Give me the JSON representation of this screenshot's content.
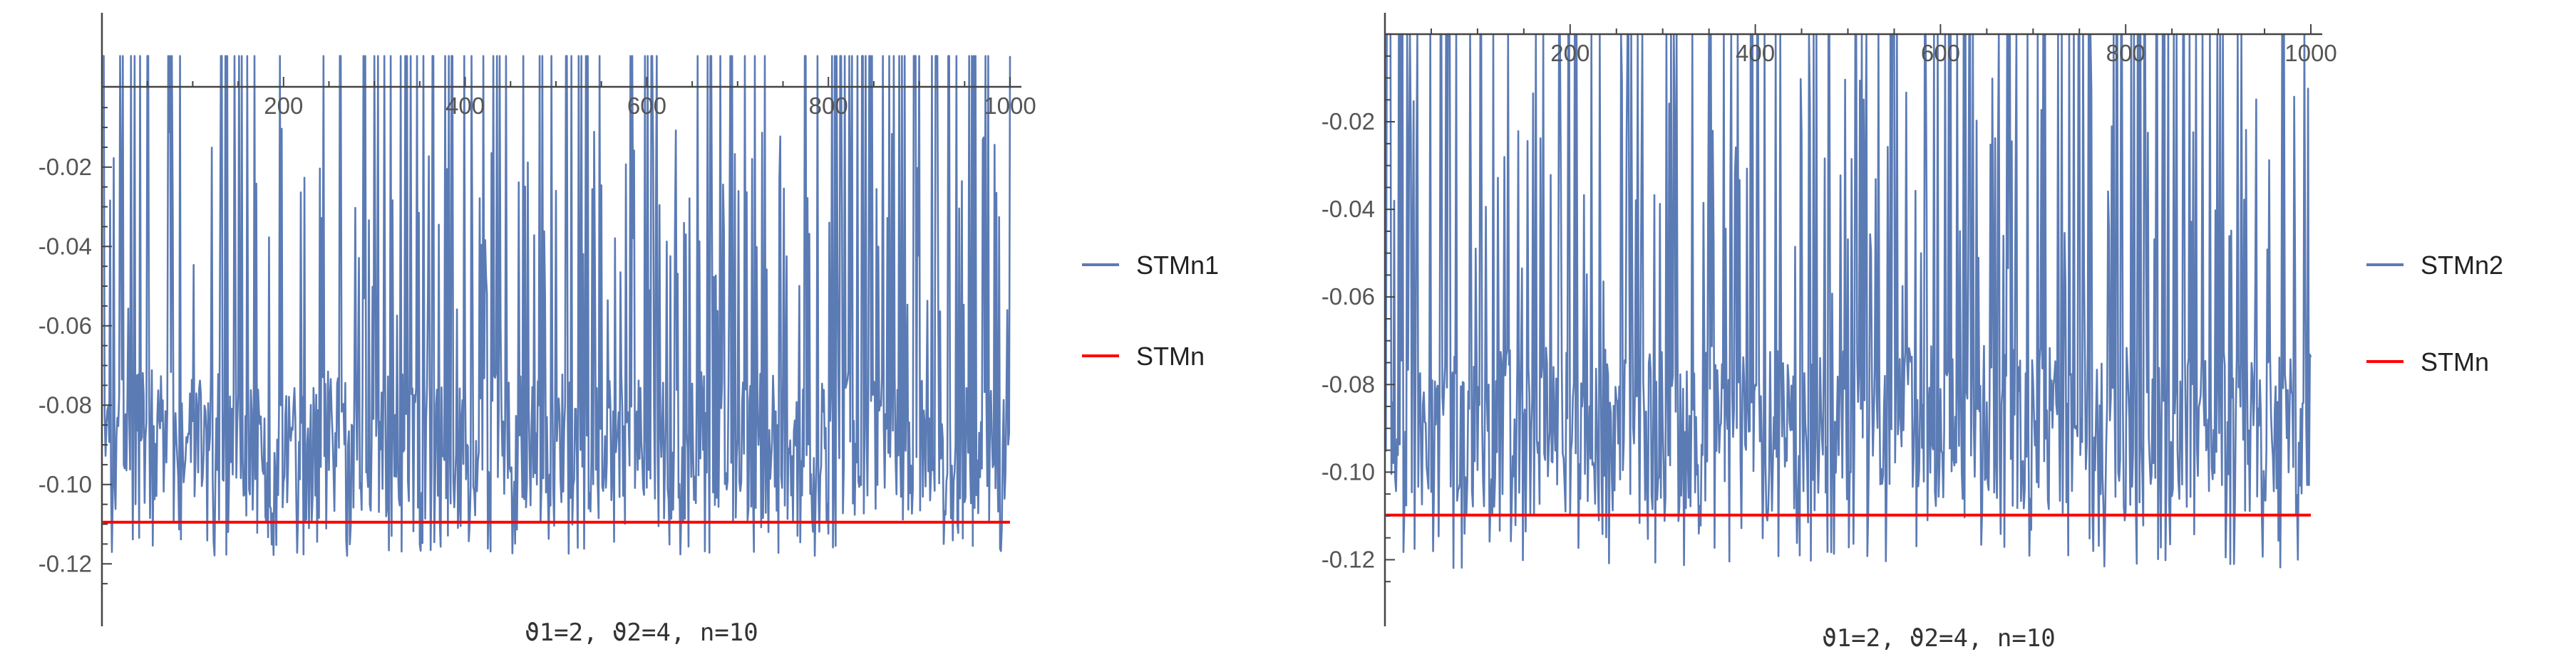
{
  "colors": {
    "series": "#5b7bb5",
    "reference": "#ff0000",
    "axis": "#444444"
  },
  "chart_data": [
    {
      "type": "line",
      "caption": "ϑ1=2, ϑ2=4, n=10",
      "x_range": [
        0,
        1000
      ],
      "y_range": [
        -0.13,
        0.0
      ],
      "x_ticks": [
        200,
        400,
        600,
        800,
        1000
      ],
      "x_tick_labels": [
        "200",
        "400",
        "600",
        "800",
        "1000"
      ],
      "y_ticks": [
        -0.02,
        -0.04,
        -0.06,
        -0.08,
        -0.1,
        -0.12
      ],
      "y_tick_labels": [
        "-0.02",
        "-0.04",
        "-0.06",
        "-0.08",
        "-0.10",
        "-0.12"
      ],
      "legend_position": "right",
      "grid": false,
      "series": [
        {
          "name": "STMn1",
          "type": "noise",
          "n_points": 1000,
          "clip_top": 0.008,
          "typical": -0.09,
          "min": -0.118,
          "seed": 7
        },
        {
          "name": "STMn",
          "type": "constant",
          "value": -0.1095
        }
      ]
    },
    {
      "type": "line",
      "caption": "ϑ1=2, ϑ2=4, n=10",
      "x_range": [
        0,
        1000
      ],
      "y_range": [
        -0.13,
        0.0
      ],
      "x_ticks": [
        200,
        400,
        600,
        800,
        1000
      ],
      "x_tick_labels": [
        "200",
        "400",
        "600",
        "800",
        "1000"
      ],
      "y_ticks": [
        -0.02,
        -0.04,
        -0.06,
        -0.08,
        -0.1,
        -0.12
      ],
      "y_tick_labels": [
        "-0.02",
        "-0.04",
        "-0.06",
        "-0.08",
        "-0.10",
        "-0.12"
      ],
      "legend_position": "right",
      "grid": false,
      "series": [
        {
          "name": "STMn2",
          "type": "noise",
          "n_points": 1000,
          "clip_top": 0.0,
          "typical": -0.09,
          "min": -0.122,
          "seed": 13
        },
        {
          "name": "STMn",
          "type": "constant",
          "value": -0.1098
        }
      ]
    }
  ]
}
